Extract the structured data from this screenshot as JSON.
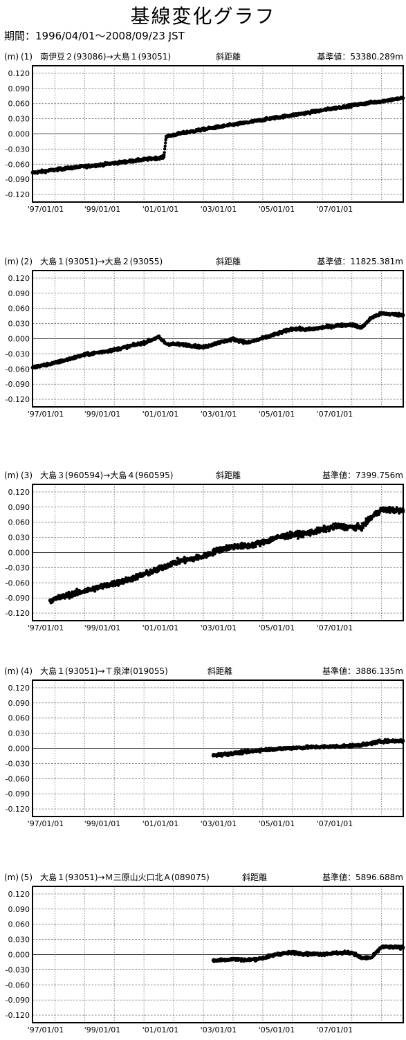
{
  "title": "基線変化グラフ",
  "period": "期間：1996/04/01～2008/09/23 JST",
  "unit": "(m)",
  "x_ticks": [
    "97/01/01",
    "99/01/01",
    "01/01/01",
    "03/01/01",
    "05/01/01",
    "07/01/01"
  ],
  "y_ticks": [
    "0.120",
    "0.090",
    "0.060",
    "0.030",
    "0.000",
    "-0.030",
    "-0.060",
    "-0.090",
    "-0.120"
  ],
  "chart_data": [
    {
      "type": "scatter",
      "number": "(1)",
      "baseline": "南伊豆２(93086)→大島１(93051)",
      "measure": "斜距離",
      "reference": "基準値：53380.289m",
      "ylim": [
        -0.135,
        0.135
      ],
      "xlim": [
        "1996-04-01",
        "2008-09-23"
      ],
      "series": [
        {
          "x": [
            "1996-04-01",
            "1997-06-01",
            "1998-06-01",
            "1999-06-01",
            "2000-06-01",
            "2000-09-01",
            "2000-10-01",
            "2001-06-01",
            "2002-06-01",
            "2003-06-01",
            "2004-06-01",
            "2005-06-01",
            "2006-06-01",
            "2007-06-01",
            "2008-09-23"
          ],
          "y": [
            -0.077,
            -0.068,
            -0.062,
            -0.055,
            -0.048,
            -0.046,
            -0.005,
            0.003,
            0.013,
            0.022,
            0.032,
            0.041,
            0.051,
            0.06,
            0.071
          ]
        }
      ]
    },
    {
      "type": "scatter",
      "number": "(2)",
      "baseline": "大島１(93051)→大島２(93055)",
      "measure": "斜距離",
      "reference": "基準値：11825.381m",
      "ylim": [
        -0.135,
        0.135
      ],
      "xlim": [
        "1996-04-01",
        "2008-09-23"
      ],
      "series": [
        {
          "x": [
            "1996-04-01",
            "1997-01-01",
            "1998-01-01",
            "1999-01-01",
            "2000-01-01",
            "2000-07-01",
            "2000-10-01",
            "2001-06-01",
            "2002-01-01",
            "2002-07-01",
            "2003-01-01",
            "2003-07-01",
            "2004-01-01",
            "2004-07-01",
            "2005-01-01",
            "2005-07-01",
            "2006-01-01",
            "2006-07-01",
            "2007-01-01",
            "2007-05-01",
            "2007-09-01",
            "2008-01-01",
            "2008-09-23"
          ],
          "y": [
            -0.057,
            -0.048,
            -0.032,
            -0.022,
            -0.008,
            0.003,
            -0.01,
            -0.012,
            -0.017,
            -0.008,
            -0.001,
            -0.008,
            0.001,
            0.01,
            0.02,
            0.018,
            0.022,
            0.026,
            0.028,
            0.022,
            0.042,
            0.05,
            0.047
          ]
        }
      ]
    },
    {
      "type": "scatter",
      "number": "(3)",
      "baseline": "大島３(960594)→大島４(960595)",
      "measure": "斜距離",
      "reference": "基準値：7399.756m",
      "ylim": [
        -0.135,
        0.135
      ],
      "xlim": [
        "1996-04-01",
        "2008-09-23"
      ],
      "series": [
        {
          "x": [
            "1996-11-01",
            "1997-06-01",
            "1998-06-01",
            "1999-06-01",
            "2000-06-01",
            "2001-01-01",
            "2001-06-01",
            "2002-01-01",
            "2002-07-01",
            "2003-01-01",
            "2003-07-01",
            "2004-01-01",
            "2004-07-01",
            "2005-01-01",
            "2005-07-01",
            "2006-01-01",
            "2006-07-01",
            "2007-01-01",
            "2007-05-01",
            "2007-09-01",
            "2008-01-01",
            "2008-09-23"
          ],
          "y": [
            -0.095,
            -0.085,
            -0.07,
            -0.055,
            -0.035,
            -0.02,
            -0.015,
            -0.008,
            0.005,
            0.012,
            0.013,
            0.02,
            0.03,
            0.035,
            0.038,
            0.045,
            0.052,
            0.05,
            0.05,
            0.07,
            0.085,
            0.083
          ]
        }
      ]
    },
    {
      "type": "scatter",
      "number": "(4)",
      "baseline": "大島１(93051)→Ｔ泉津(019055)",
      "measure": "斜距離",
      "reference": "基準値：3886.135m",
      "ylim": [
        -0.135,
        0.135
      ],
      "xlim": [
        "1996-04-01",
        "2008-09-23"
      ],
      "series": [
        {
          "x": [
            "2002-05-01",
            "2003-01-01",
            "2004-01-01",
            "2005-01-01",
            "2006-01-01",
            "2007-01-01",
            "2007-07-01",
            "2008-01-01",
            "2008-09-23"
          ],
          "y": [
            -0.014,
            -0.01,
            -0.003,
            0.001,
            0.003,
            0.005,
            0.008,
            0.014,
            0.015
          ]
        }
      ]
    },
    {
      "type": "scatter",
      "number": "(5)",
      "baseline": "大島１(93051)→Ｍ三原山火口北Ａ(089075)",
      "measure": "斜距離",
      "reference": "基準値：5896.688m",
      "ylim": [
        -0.135,
        0.135
      ],
      "xlim": [
        "1996-04-01",
        "2008-09-23"
      ],
      "series": [
        {
          "x": [
            "2002-05-01",
            "2003-01-01",
            "2003-07-01",
            "2004-01-01",
            "2004-07-01",
            "2005-01-01",
            "2005-07-01",
            "2006-01-01",
            "2006-07-01",
            "2007-01-01",
            "2007-05-01",
            "2007-09-01",
            "2008-01-01",
            "2008-09-23"
          ],
          "y": [
            -0.012,
            -0.009,
            -0.011,
            -0.007,
            0.001,
            0.004,
            0.001,
            0.001,
            0.003,
            0.004,
            -0.007,
            -0.006,
            0.015,
            0.014
          ]
        }
      ]
    }
  ]
}
